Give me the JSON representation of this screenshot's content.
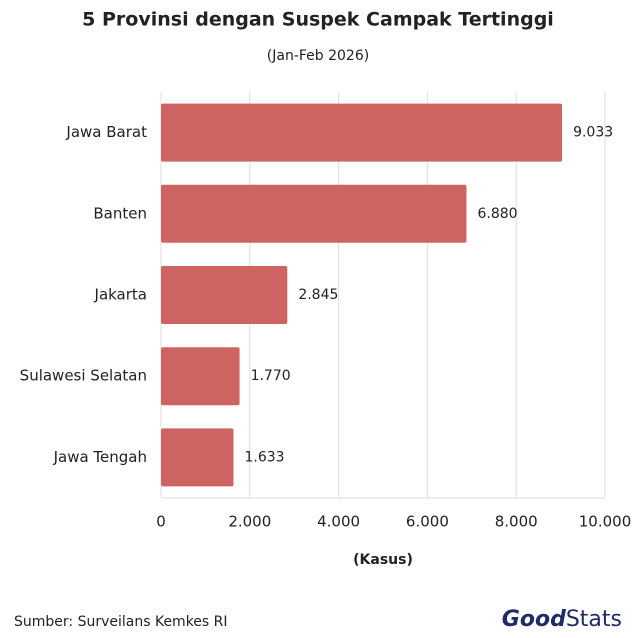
{
  "chart_data": {
    "type": "barh",
    "title": "5 Provinsi dengan Suspek Campak Tertinggi",
    "subtitle": "(Jan-Feb 2026)",
    "categories": [
      "Jawa Barat",
      "Banten",
      "Jakarta",
      "Sulawesi Selatan",
      "Jawa Tengah"
    ],
    "values": [
      9033,
      6880,
      2845,
      1770,
      1633
    ],
    "value_labels": [
      "9.033",
      "6.880",
      "2.845",
      "1.770",
      "1.633"
    ],
    "color": "#cd6462",
    "xlim": [
      0,
      10000
    ],
    "xticks": [
      0,
      {
        "value": 2000,
        "label": "2.000"
      },
      {
        "value": 4000,
        "label": "4.000"
      },
      {
        "value": 6000,
        "label": "6.000"
      },
      {
        "value": 8000,
        "label": "8.000"
      },
      {
        "value": 10000,
        "label": "10.000"
      }
    ],
    "xlabel": "(Kasus)",
    "grid": true,
    "source": "Sumber: Surveilans Kemkes RI",
    "logo": [
      "Good",
      "Stats"
    ]
  }
}
